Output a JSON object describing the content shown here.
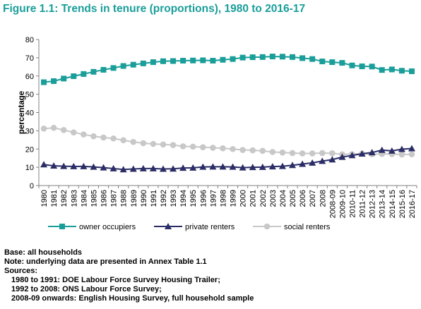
{
  "figure": {
    "title": "Figure 1.1: Trends in tenure (proportions), 1980 to 2016-17"
  },
  "notes": {
    "base": "Base: all households",
    "note": "Note: underlying data are presented in Annex Table 1.1",
    "sources_label": "Sources:",
    "sources": [
      "1980 to 1991: DOE Labour Force Survey Housing Trailer;",
      "1992 to 2008: ONS Labour Force Survey;",
      "2008-09 onwards: English Housing Survey, full household sample"
    ]
  },
  "colors": {
    "owner": "#1a9e9a",
    "private": "#2b2d66",
    "social": "#c8c8c8",
    "title": "#1a9e9a",
    "axis": "#808080"
  },
  "chart_data": {
    "type": "line",
    "title": "Figure 1.1: Trends in tenure (proportions), 1980 to 2016-17",
    "xlabel": "",
    "ylabel": "percentage",
    "ylim": [
      0,
      80
    ],
    "yticks": [
      0,
      10,
      20,
      30,
      40,
      50,
      60,
      70,
      80
    ],
    "grid": false,
    "legend_position": "bottom",
    "categories": [
      "1980",
      "1981",
      "1982",
      "1983",
      "1984",
      "1985",
      "1986",
      "1987",
      "1988",
      "1989",
      "1990",
      "1991",
      "1992",
      "1993",
      "1994",
      "1995",
      "1996",
      "1997",
      "1998",
      "1999",
      "2000",
      "2001",
      "2002",
      "2003",
      "2004",
      "2005",
      "2006",
      "2007",
      "2008",
      "2008-09",
      "2009-10",
      "2010-11",
      "2011-12",
      "2012-13",
      "2013-14",
      "2014-15",
      "2015-16",
      "2016-17"
    ],
    "series": [
      {
        "name": "owner occupiers",
        "marker": "square",
        "color": "#1a9e9a",
        "values": [
          56.6,
          57.2,
          58.6,
          59.9,
          61.1,
          62.3,
          63.4,
          64.4,
          65.5,
          66.2,
          66.9,
          67.6,
          68.1,
          68.2,
          68.4,
          68.5,
          68.6,
          68.4,
          68.9,
          69.3,
          70.1,
          70.3,
          70.4,
          70.7,
          70.6,
          70.4,
          69.8,
          69.3,
          68.0,
          67.6,
          67.2,
          65.8,
          65.3,
          65.2,
          63.3,
          63.6,
          62.9,
          62.6
        ]
      },
      {
        "name": "private renters",
        "marker": "triangle",
        "color": "#2b2d66",
        "values": [
          11.5,
          10.8,
          10.6,
          10.5,
          10.5,
          10.2,
          9.8,
          9.3,
          8.8,
          9.1,
          9.3,
          9.3,
          9.1,
          9.2,
          9.6,
          9.7,
          10.2,
          10.3,
          10.3,
          10.2,
          9.8,
          10.0,
          10.1,
          10.4,
          10.6,
          11.1,
          11.8,
          12.4,
          13.4,
          14.2,
          15.6,
          16.5,
          17.4,
          18.1,
          19.4,
          19.0,
          19.9,
          20.3
        ]
      },
      {
        "name": "social renters",
        "marker": "circle",
        "color": "#c8c8c8",
        "values": [
          31.2,
          31.6,
          30.4,
          29.1,
          28.0,
          27.0,
          26.3,
          25.8,
          24.8,
          23.9,
          23.2,
          22.8,
          22.5,
          22.2,
          21.5,
          21.3,
          21.0,
          20.7,
          20.4,
          20.0,
          19.5,
          19.3,
          19.0,
          18.4,
          18.1,
          17.8,
          17.6,
          17.6,
          17.8,
          17.7,
          17.1,
          17.2,
          17.5,
          17.1,
          17.3,
          17.2,
          17.0,
          17.1
        ]
      }
    ]
  }
}
